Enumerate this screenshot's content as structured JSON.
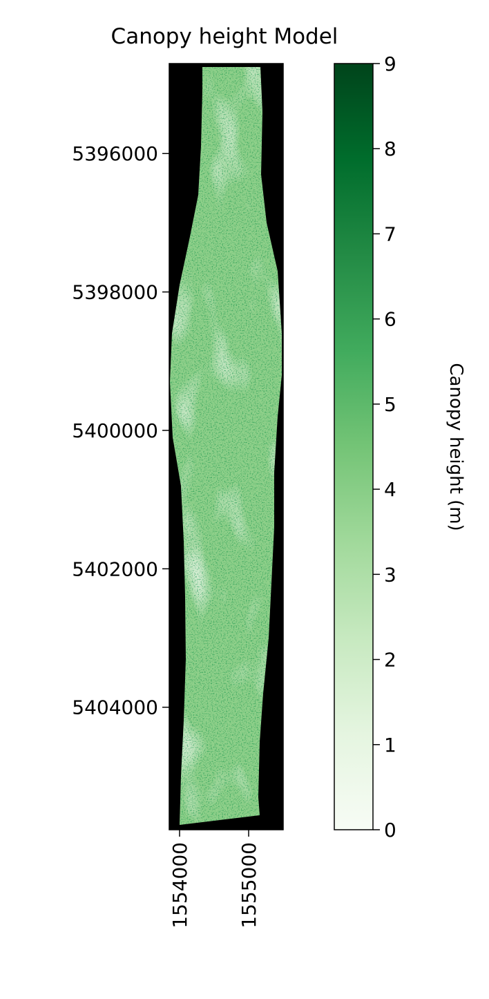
{
  "chart_data": {
    "type": "heatmap",
    "title": "Canopy height Model",
    "xlabel": "",
    "ylabel": "",
    "x_ticks": [
      1554000,
      1555000
    ],
    "x_tick_labels": [
      "1554000",
      "1555000"
    ],
    "y_ticks": [
      5396000,
      5398000,
      5400000,
      5402000,
      5404000
    ],
    "y_tick_labels": [
      "5396000",
      "5398000",
      "5400000",
      "5402000",
      "5404000"
    ],
    "xlim": [
      1553850,
      1555500
    ],
    "ylim": [
      5405770,
      5394700
    ],
    "y_inverted": true,
    "colorbar": {
      "label": "Canopy height (m)",
      "min": 0,
      "max": 9,
      "ticks": [
        0,
        1,
        2,
        3,
        4,
        5,
        6,
        7,
        8,
        9
      ],
      "tick_labels": [
        "0",
        "1",
        "2",
        "3",
        "4",
        "5",
        "6",
        "7",
        "8",
        "9"
      ],
      "colormap": "Greens",
      "colors": [
        "#f7fcf5",
        "#e5f5e0",
        "#c7e9c0",
        "#a1d99b",
        "#74c476",
        "#41ab5d",
        "#238b45",
        "#006d2c",
        "#00441b"
      ]
    },
    "nodata_color": "#000000",
    "grid": false
  }
}
